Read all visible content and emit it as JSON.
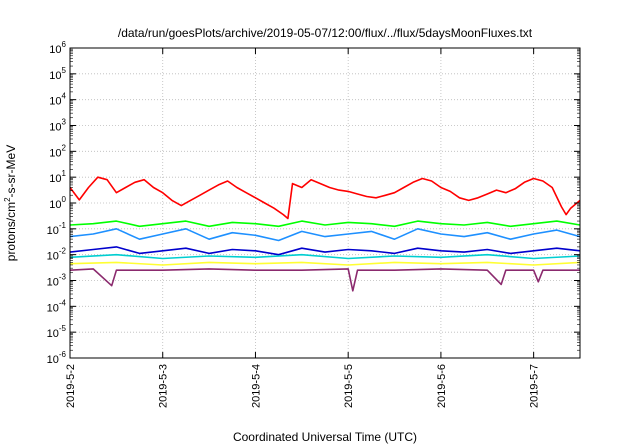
{
  "chart_data": {
    "type": "line",
    "title": "/data/run/goesPlots/archive/2019-05-07/12:00/flux/../flux/5daysMoonFluxes.txt",
    "xlabel": "Coordinated Universal Time (UTC)",
    "ylabel": "protons/cm2-s-sr-MeV",
    "ylabel_parts": {
      "before": "protons/cm",
      "sup": "2",
      "after": "-s-sr-MeV"
    },
    "y_scale": "log",
    "ylim_exp": [
      -6,
      6
    ],
    "y_ticks": [
      {
        "exp": -6,
        "base": "10",
        "sup": "-6"
      },
      {
        "exp": -5,
        "base": "10",
        "sup": "-5"
      },
      {
        "exp": -4,
        "base": "10",
        "sup": "-4"
      },
      {
        "exp": -3,
        "base": "10",
        "sup": "-3"
      },
      {
        "exp": -2,
        "base": "10",
        "sup": "-2"
      },
      {
        "exp": -1,
        "base": "10",
        "sup": "-1"
      },
      {
        "exp": 0,
        "base": "10",
        "sup": "0"
      },
      {
        "exp": 1,
        "base": "10",
        "sup": "1"
      },
      {
        "exp": 2,
        "base": "10",
        "sup": "2"
      },
      {
        "exp": 3,
        "base": "10",
        "sup": "3"
      },
      {
        "exp": 4,
        "base": "10",
        "sup": "4"
      },
      {
        "exp": 5,
        "base": "10",
        "sup": "5"
      },
      {
        "exp": 6,
        "base": "10",
        "sup": "6"
      }
    ],
    "x_range_days": [
      0,
      5.5
    ],
    "x_ticks": [
      {
        "day": 0,
        "label": "2019-5-2"
      },
      {
        "day": 1,
        "label": "2019-5-3"
      },
      {
        "day": 2,
        "label": "2019-5-4"
      },
      {
        "day": 3,
        "label": "2019-5-5"
      },
      {
        "day": 4,
        "label": "2019-5-6"
      },
      {
        "day": 5,
        "label": "2019-5-7"
      }
    ],
    "grid": true,
    "legend": "none",
    "series": [
      {
        "color": "#ff0000",
        "points": [
          [
            0,
            0.6
          ],
          [
            0.1,
            0.12
          ],
          [
            0.2,
            0.6
          ],
          [
            0.3,
            1.0
          ],
          [
            0.4,
            0.9
          ],
          [
            0.5,
            0.4
          ],
          [
            0.6,
            0.6
          ],
          [
            0.7,
            0.8
          ],
          [
            0.8,
            0.9
          ],
          [
            0.9,
            0.6
          ],
          [
            1.0,
            0.4
          ],
          [
            1.1,
            0.1
          ],
          [
            1.2,
            -0.1
          ],
          [
            1.3,
            0.1
          ],
          [
            1.4,
            0.3
          ],
          [
            1.5,
            0.5
          ],
          [
            1.6,
            0.7
          ],
          [
            1.7,
            0.85
          ],
          [
            1.8,
            0.6
          ],
          [
            1.9,
            0.4
          ],
          [
            2.0,
            0.2
          ],
          [
            2.1,
            0.0
          ],
          [
            2.2,
            -0.2
          ],
          [
            2.3,
            -0.45
          ],
          [
            2.35,
            -0.6
          ],
          [
            2.4,
            0.75
          ],
          [
            2.5,
            0.6
          ],
          [
            2.6,
            0.9
          ],
          [
            2.7,
            0.75
          ],
          [
            2.8,
            0.6
          ],
          [
            2.9,
            0.5
          ],
          [
            3.0,
            0.45
          ],
          [
            3.1,
            0.35
          ],
          [
            3.2,
            0.25
          ],
          [
            3.3,
            0.2
          ],
          [
            3.4,
            0.3
          ],
          [
            3.5,
            0.4
          ],
          [
            3.6,
            0.6
          ],
          [
            3.7,
            0.8
          ],
          [
            3.8,
            0.95
          ],
          [
            3.9,
            0.85
          ],
          [
            4.0,
            0.6
          ],
          [
            4.1,
            0.45
          ],
          [
            4.2,
            0.2
          ],
          [
            4.3,
            0.1
          ],
          [
            4.4,
            0.2
          ],
          [
            4.5,
            0.35
          ],
          [
            4.6,
            0.5
          ],
          [
            4.7,
            0.4
          ],
          [
            4.8,
            0.55
          ],
          [
            4.9,
            0.8
          ],
          [
            5.0,
            0.95
          ],
          [
            5.1,
            0.85
          ],
          [
            5.2,
            0.6
          ],
          [
            5.3,
            -0.15
          ],
          [
            5.35,
            -0.45
          ],
          [
            5.4,
            -0.2
          ],
          [
            5.5,
            0.1
          ]
        ]
      },
      {
        "color": "#00ff00",
        "points": [
          [
            0,
            -0.85
          ],
          [
            0.25,
            -0.8
          ],
          [
            0.5,
            -0.7
          ],
          [
            0.75,
            -0.9
          ],
          [
            1.0,
            -0.8
          ],
          [
            1.25,
            -0.7
          ],
          [
            1.5,
            -0.9
          ],
          [
            1.75,
            -0.75
          ],
          [
            2.0,
            -0.8
          ],
          [
            2.25,
            -0.9
          ],
          [
            2.5,
            -0.7
          ],
          [
            2.75,
            -0.85
          ],
          [
            3.0,
            -0.75
          ],
          [
            3.25,
            -0.8
          ],
          [
            3.5,
            -0.9
          ],
          [
            3.75,
            -0.7
          ],
          [
            4.0,
            -0.8
          ],
          [
            4.25,
            -0.85
          ],
          [
            4.5,
            -0.75
          ],
          [
            4.75,
            -0.9
          ],
          [
            5.0,
            -0.8
          ],
          [
            5.25,
            -0.7
          ],
          [
            5.5,
            -0.85
          ]
        ]
      },
      {
        "color": "#1e90ff",
        "points": [
          [
            0,
            -1.3
          ],
          [
            0.25,
            -1.2
          ],
          [
            0.5,
            -1.0
          ],
          [
            0.75,
            -1.4
          ],
          [
            1.0,
            -1.2
          ],
          [
            1.25,
            -1.0
          ],
          [
            1.5,
            -1.4
          ],
          [
            1.75,
            -1.15
          ],
          [
            2.0,
            -1.25
          ],
          [
            2.25,
            -1.45
          ],
          [
            2.5,
            -1.1
          ],
          [
            2.75,
            -1.3
          ],
          [
            3.0,
            -1.2
          ],
          [
            3.25,
            -1.1
          ],
          [
            3.5,
            -1.4
          ],
          [
            3.75,
            -1.0
          ],
          [
            4.0,
            -1.2
          ],
          [
            4.25,
            -1.3
          ],
          [
            4.5,
            -1.15
          ],
          [
            4.75,
            -1.4
          ],
          [
            5.0,
            -1.2
          ],
          [
            5.25,
            -1.05
          ],
          [
            5.5,
            -1.3
          ]
        ]
      },
      {
        "color": "#0000cd",
        "points": [
          [
            0,
            -1.9
          ],
          [
            0.25,
            -1.8
          ],
          [
            0.5,
            -1.7
          ],
          [
            0.75,
            -1.95
          ],
          [
            1.0,
            -1.85
          ],
          [
            1.25,
            -1.75
          ],
          [
            1.5,
            -1.95
          ],
          [
            1.75,
            -1.8
          ],
          [
            2.0,
            -1.85
          ],
          [
            2.25,
            -2.0
          ],
          [
            2.5,
            -1.75
          ],
          [
            2.75,
            -1.9
          ],
          [
            3.0,
            -1.8
          ],
          [
            3.25,
            -1.85
          ],
          [
            3.5,
            -1.95
          ],
          [
            3.75,
            -1.75
          ],
          [
            4.0,
            -1.85
          ],
          [
            4.25,
            -1.9
          ],
          [
            4.5,
            -1.8
          ],
          [
            4.75,
            -1.95
          ],
          [
            5.0,
            -1.85
          ],
          [
            5.25,
            -1.75
          ],
          [
            5.5,
            -1.85
          ]
        ]
      },
      {
        "color": "#00ced1",
        "points": [
          [
            0,
            -2.1
          ],
          [
            0.5,
            -2.0
          ],
          [
            1.0,
            -2.15
          ],
          [
            1.5,
            -2.05
          ],
          [
            2.0,
            -2.1
          ],
          [
            2.5,
            -2.0
          ],
          [
            3.0,
            -2.15
          ],
          [
            3.5,
            -2.05
          ],
          [
            4.0,
            -2.1
          ],
          [
            4.5,
            -2.0
          ],
          [
            5.0,
            -2.15
          ],
          [
            5.5,
            -2.05
          ]
        ]
      },
      {
        "color": "#ffff33",
        "points": [
          [
            0,
            -2.35
          ],
          [
            0.5,
            -2.3
          ],
          [
            1.0,
            -2.4
          ],
          [
            1.5,
            -2.3
          ],
          [
            2.0,
            -2.35
          ],
          [
            2.5,
            -2.3
          ],
          [
            3.0,
            -2.4
          ],
          [
            3.5,
            -2.3
          ],
          [
            4.0,
            -2.35
          ],
          [
            4.5,
            -2.3
          ],
          [
            5.0,
            -2.4
          ],
          [
            5.5,
            -2.3
          ]
        ]
      },
      {
        "color": "#8b2a6e",
        "points": [
          [
            0,
            -2.6
          ],
          [
            0.25,
            -2.55
          ],
          [
            0.45,
            -3.2
          ],
          [
            0.5,
            -2.6
          ],
          [
            1.0,
            -2.6
          ],
          [
            1.5,
            -2.55
          ],
          [
            2.0,
            -2.6
          ],
          [
            2.5,
            -2.6
          ],
          [
            3.0,
            -2.55
          ],
          [
            3.05,
            -3.4
          ],
          [
            3.1,
            -2.6
          ],
          [
            3.5,
            -2.6
          ],
          [
            4.0,
            -2.55
          ],
          [
            4.5,
            -2.6
          ],
          [
            4.65,
            -3.15
          ],
          [
            4.7,
            -2.6
          ],
          [
            5.0,
            -2.6
          ],
          [
            5.05,
            -3.05
          ],
          [
            5.1,
            -2.6
          ],
          [
            5.5,
            -2.6
          ]
        ]
      }
    ]
  }
}
